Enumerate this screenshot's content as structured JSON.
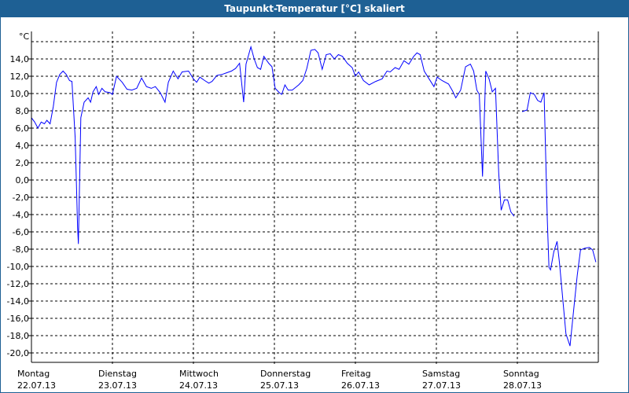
{
  "window": {
    "title": "Taupunkt-Temperatur [°C] skaliert"
  },
  "chart_data": {
    "type": "line",
    "title": "Taupunkt-Temperatur [°C] skaliert",
    "ylabel": "°C",
    "xlabel": "",
    "ylim": [
      -21.1,
      17.8
    ],
    "xlim_days": [
      0,
      7
    ],
    "grid": true,
    "yticks": [
      "14,0",
      "12,0",
      "10,0",
      "8,0",
      "6,0",
      "4,0",
      "2,0",
      "0,0",
      "-2,0",
      "-4,0",
      "-6,0",
      "-8,0",
      "-10,0",
      "-12,0",
      "-14,0",
      "-16,0",
      "-18,0",
      "-20,0"
    ],
    "ytick_values": [
      14,
      12,
      10,
      8,
      6,
      4,
      2,
      0,
      -2,
      -4,
      -6,
      -8,
      -10,
      -12,
      -14,
      -16,
      -18,
      -20
    ],
    "xticks": [
      {
        "day": "Montag",
        "date": "22.07.13"
      },
      {
        "day": "Dienstag",
        "date": "23.07.13"
      },
      {
        "day": "Mittwoch",
        "date": "24.07.13"
      },
      {
        "day": "Donnerstag",
        "date": "25.07.13"
      },
      {
        "day": "Freitag",
        "date": "26.07.13"
      },
      {
        "day": "Samstag",
        "date": "27.07.13"
      },
      {
        "day": "Sonntag",
        "date": "28.07.13"
      }
    ],
    "series": [
      {
        "name": "Taupunkt",
        "color": "#0000ff",
        "x_unit": "days since 22.07.13 00:00",
        "points": [
          [
            0,
            7.2
          ],
          [
            0.04,
            6.7
          ],
          [
            0.08,
            6.0
          ],
          [
            0.12,
            6.7
          ],
          [
            0.16,
            6.5
          ],
          [
            0.19,
            6.9
          ],
          [
            0.23,
            6.5
          ],
          [
            0.27,
            8.5
          ],
          [
            0.31,
            11.3
          ],
          [
            0.35,
            12.2
          ],
          [
            0.39,
            12.6
          ],
          [
            0.43,
            12.2
          ],
          [
            0.47,
            11.5
          ],
          [
            0.5,
            11.4
          ],
          [
            0.54,
            4.9
          ],
          [
            0.57,
            -5.5
          ],
          [
            0.58,
            -7.4
          ],
          [
            0.61,
            7.2
          ],
          [
            0.65,
            9.0
          ],
          [
            0.7,
            9.5
          ],
          [
            0.73,
            9.0
          ],
          [
            0.76,
            10.2
          ],
          [
            0.8,
            10.8
          ],
          [
            0.83,
            9.9
          ],
          [
            0.87,
            10.6
          ],
          [
            0.91,
            10.2
          ],
          [
            0.97,
            10.1
          ],
          [
            1.0,
            9.9
          ],
          [
            1.05,
            12.0
          ],
          [
            1.12,
            11.3
          ],
          [
            1.18,
            10.5
          ],
          [
            1.24,
            10.4
          ],
          [
            1.3,
            10.6
          ],
          [
            1.36,
            11.8
          ],
          [
            1.42,
            10.8
          ],
          [
            1.48,
            10.6
          ],
          [
            1.53,
            10.8
          ],
          [
            1.59,
            10.1
          ],
          [
            1.65,
            9.0
          ],
          [
            1.69,
            11.3
          ],
          [
            1.75,
            12.6
          ],
          [
            1.81,
            11.7
          ],
          [
            1.86,
            12.5
          ],
          [
            1.94,
            12.6
          ],
          [
            2.0,
            11.7
          ],
          [
            2.04,
            11.3
          ],
          [
            2.08,
            11.9
          ],
          [
            2.14,
            11.5
          ],
          [
            2.19,
            11.2
          ],
          [
            2.23,
            11.4
          ],
          [
            2.29,
            12.1
          ],
          [
            2.35,
            12.2
          ],
          [
            2.41,
            12.4
          ],
          [
            2.47,
            12.6
          ],
          [
            2.52,
            12.9
          ],
          [
            2.57,
            13.5
          ],
          [
            2.62,
            9.0
          ],
          [
            2.65,
            13.4
          ],
          [
            2.71,
            15.4
          ],
          [
            2.75,
            14.0
          ],
          [
            2.79,
            13.0
          ],
          [
            2.83,
            12.8
          ],
          [
            2.87,
            14.3
          ],
          [
            2.93,
            13.5
          ],
          [
            2.97,
            13.1
          ],
          [
            3.01,
            10.6
          ],
          [
            3.06,
            10.1
          ],
          [
            3.09,
            9.9
          ],
          [
            3.13,
            11.0
          ],
          [
            3.17,
            10.4
          ],
          [
            3.22,
            10.4
          ],
          [
            3.3,
            11.0
          ],
          [
            3.35,
            11.5
          ],
          [
            3.4,
            12.9
          ],
          [
            3.45,
            15.0
          ],
          [
            3.5,
            15.1
          ],
          [
            3.54,
            14.7
          ],
          [
            3.59,
            12.8
          ],
          [
            3.64,
            14.5
          ],
          [
            3.69,
            14.6
          ],
          [
            3.74,
            14.0
          ],
          [
            3.79,
            14.5
          ],
          [
            3.84,
            14.3
          ],
          [
            3.9,
            13.5
          ],
          [
            3.96,
            13.0
          ],
          [
            4.0,
            12.0
          ],
          [
            4.04,
            12.5
          ],
          [
            4.1,
            11.5
          ],
          [
            4.17,
            11.0
          ],
          [
            4.25,
            11.4
          ],
          [
            4.33,
            11.7
          ],
          [
            4.39,
            12.6
          ],
          [
            4.43,
            12.5
          ],
          [
            4.49,
            13.0
          ],
          [
            4.54,
            12.8
          ],
          [
            4.6,
            13.8
          ],
          [
            4.66,
            13.4
          ],
          [
            4.72,
            14.3
          ],
          [
            4.76,
            14.7
          ],
          [
            4.8,
            14.5
          ],
          [
            4.85,
            12.6
          ],
          [
            4.91,
            11.7
          ],
          [
            4.97,
            10.8
          ],
          [
            5.01,
            11.9
          ],
          [
            5.07,
            11.5
          ],
          [
            5.15,
            11.1
          ],
          [
            5.2,
            10.3
          ],
          [
            5.24,
            9.5
          ],
          [
            5.3,
            10.4
          ],
          [
            5.36,
            13.1
          ],
          [
            5.42,
            13.4
          ],
          [
            5.46,
            12.6
          ],
          [
            5.5,
            10.4
          ],
          [
            5.53,
            9.9
          ],
          [
            5.57,
            0.4
          ],
          [
            5.61,
            12.6
          ],
          [
            5.65,
            11.7
          ],
          [
            5.69,
            10.2
          ],
          [
            5.73,
            10.6
          ],
          [
            5.77,
            0.8
          ],
          [
            5.8,
            -3.5
          ],
          [
            5.84,
            -2.3
          ],
          [
            5.88,
            -2.3
          ],
          [
            5.92,
            -3.7
          ],
          [
            5.96,
            -4.2
          ],
          null,
          [
            6.06,
            7.9
          ],
          [
            6.12,
            8.1
          ],
          [
            6.16,
            10.1
          ],
          [
            6.21,
            9.9
          ],
          [
            6.25,
            9.2
          ],
          [
            6.29,
            9.0
          ],
          [
            6.33,
            10.1
          ],
          [
            6.37,
            -4.6
          ],
          [
            6.39,
            -10.1
          ],
          [
            6.41,
            -10.4
          ],
          [
            6.45,
            -8.3
          ],
          [
            6.49,
            -7.1
          ],
          [
            6.52,
            -9.6
          ],
          [
            6.56,
            -13.7
          ],
          [
            6.6,
            -17.8
          ],
          [
            6.65,
            -19.2
          ],
          [
            6.7,
            -14.6
          ],
          [
            6.74,
            -11.0
          ],
          [
            6.78,
            -8.1
          ],
          [
            6.83,
            -7.9
          ],
          [
            6.89,
            -7.8
          ],
          [
            6.93,
            -8.1
          ],
          [
            6.97,
            -9.5
          ]
        ]
      }
    ]
  }
}
